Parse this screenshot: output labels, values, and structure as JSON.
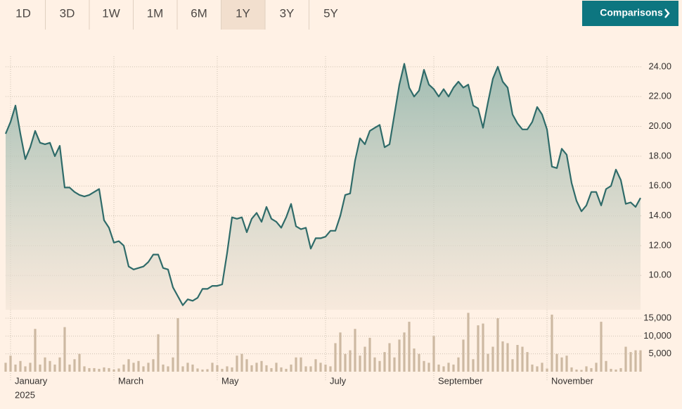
{
  "tabs": [
    "1D",
    "3D",
    "1W",
    "1M",
    "6M",
    "1Y",
    "3Y",
    "5Y"
  ],
  "active_tab": "1Y",
  "comparisons_button": "Comparisons",
  "chart_data": [
    {
      "type": "line",
      "color": "#2f6b69",
      "fill": true,
      "values": [
        19.5,
        20.3,
        21.4,
        19.5,
        17.8,
        18.6,
        19.7,
        18.9,
        18.8,
        18.9,
        18.0,
        18.7,
        15.9,
        15.9,
        15.6,
        15.4,
        15.3,
        15.4,
        15.6,
        15.8,
        13.7,
        13.2,
        12.2,
        12.3,
        12.0,
        10.6,
        10.4,
        10.5,
        10.6,
        10.9,
        11.4,
        11.4,
        10.5,
        10.4,
        9.2,
        8.6,
        8.0,
        8.4,
        8.3,
        8.5,
        9.1,
        9.1,
        9.3,
        9.3,
        9.4,
        11.5,
        13.9,
        13.8,
        13.9,
        12.9,
        13.8,
        14.2,
        13.6,
        14.6,
        13.8,
        13.6,
        13.2,
        13.9,
        14.8,
        13.3,
        13.1,
        13.2,
        11.8,
        12.5,
        12.5,
        12.6,
        13.0,
        13.0,
        14.0,
        15.4,
        15.5,
        17.7,
        19.2,
        18.8,
        19.7,
        19.9,
        20.1,
        18.6,
        18.8,
        20.8,
        22.8,
        24.2,
        22.6,
        22.0,
        22.4,
        23.8,
        22.8,
        22.5,
        22.0,
        22.5,
        22.0,
        22.6,
        23.0,
        22.6,
        22.8,
        21.4,
        21.2,
        19.9,
        21.6,
        23.2,
        24.0,
        23.0,
        22.6,
        20.8,
        20.2,
        19.8,
        19.8,
        20.3,
        21.3,
        20.8,
        19.8,
        17.3,
        17.2,
        18.5,
        18.1,
        16.2,
        15.0,
        14.3,
        14.7,
        15.6,
        15.6,
        14.7,
        15.8,
        16.0,
        17.1,
        16.4,
        14.8,
        14.9,
        14.6,
        15.2
      ],
      "ylim": [
        7.7,
        24.7
      ],
      "yticks": [
        {
          "value": 10,
          "label": "10.00"
        },
        {
          "value": 12,
          "label": "12.00"
        },
        {
          "value": 14,
          "label": "14.00"
        },
        {
          "value": 16,
          "label": "16.00"
        },
        {
          "value": 18,
          "label": "18.00"
        },
        {
          "value": 20,
          "label": "20.00"
        },
        {
          "value": 22,
          "label": "22.00"
        },
        {
          "value": 24,
          "label": "24.00"
        }
      ],
      "grid": true
    },
    {
      "type": "bar",
      "color": "#cdb9a2",
      "values": [
        2500,
        4500,
        2000,
        3000,
        1500,
        2500,
        12000,
        2000,
        4000,
        3000,
        2000,
        4000,
        12500,
        2000,
        3500,
        5000,
        1500,
        1000,
        1000,
        800,
        1200,
        1000,
        600,
        900,
        2000,
        3500,
        2500,
        3000,
        1500,
        2500,
        3500,
        10500,
        2000,
        1500,
        4000,
        15000,
        1500,
        2500,
        2000,
        900,
        600,
        700,
        2500,
        1800,
        800,
        1500,
        1200,
        4500,
        5000,
        3500,
        1800,
        2500,
        3000,
        1800,
        1000,
        2500,
        1200,
        800,
        2000,
        4000,
        4000,
        1500,
        1500,
        3500,
        2500,
        2000,
        1500,
        8000,
        11000,
        5000,
        6000,
        12000,
        4500,
        7000,
        9500,
        4000,
        3000,
        5500,
        8000,
        4000,
        9000,
        11000,
        14000,
        6500,
        5000,
        3000,
        2500,
        10000,
        2000,
        1500,
        2500,
        2000,
        4000,
        9000,
        16500,
        3500,
        13000,
        13500,
        5000,
        7000,
        15000,
        8500,
        8000,
        3500,
        7500,
        7000,
        5500,
        2000,
        1500,
        2500,
        900,
        16000,
        5000,
        4000,
        4500,
        1200,
        600,
        500,
        1500,
        1000,
        2500,
        14000,
        3000,
        800,
        600,
        1000,
        7000,
        5500,
        6000,
        6000
      ],
      "ylim": [
        0,
        15000
      ],
      "yticks": [
        {
          "value": 5000,
          "label": "5,000"
        },
        {
          "value": 10000,
          "label": "10,000"
        },
        {
          "value": 15000,
          "label": "15,000"
        }
      ],
      "xticks": [
        {
          "value": 1,
          "label": "January"
        },
        {
          "value": 22,
          "label": "March"
        },
        {
          "value": 43,
          "label": "May"
        },
        {
          "value": 65,
          "label": "July"
        },
        {
          "value": 87,
          "label": "September"
        },
        {
          "value": 110,
          "label": "November"
        }
      ],
      "year": "2025",
      "grid": true
    }
  ]
}
